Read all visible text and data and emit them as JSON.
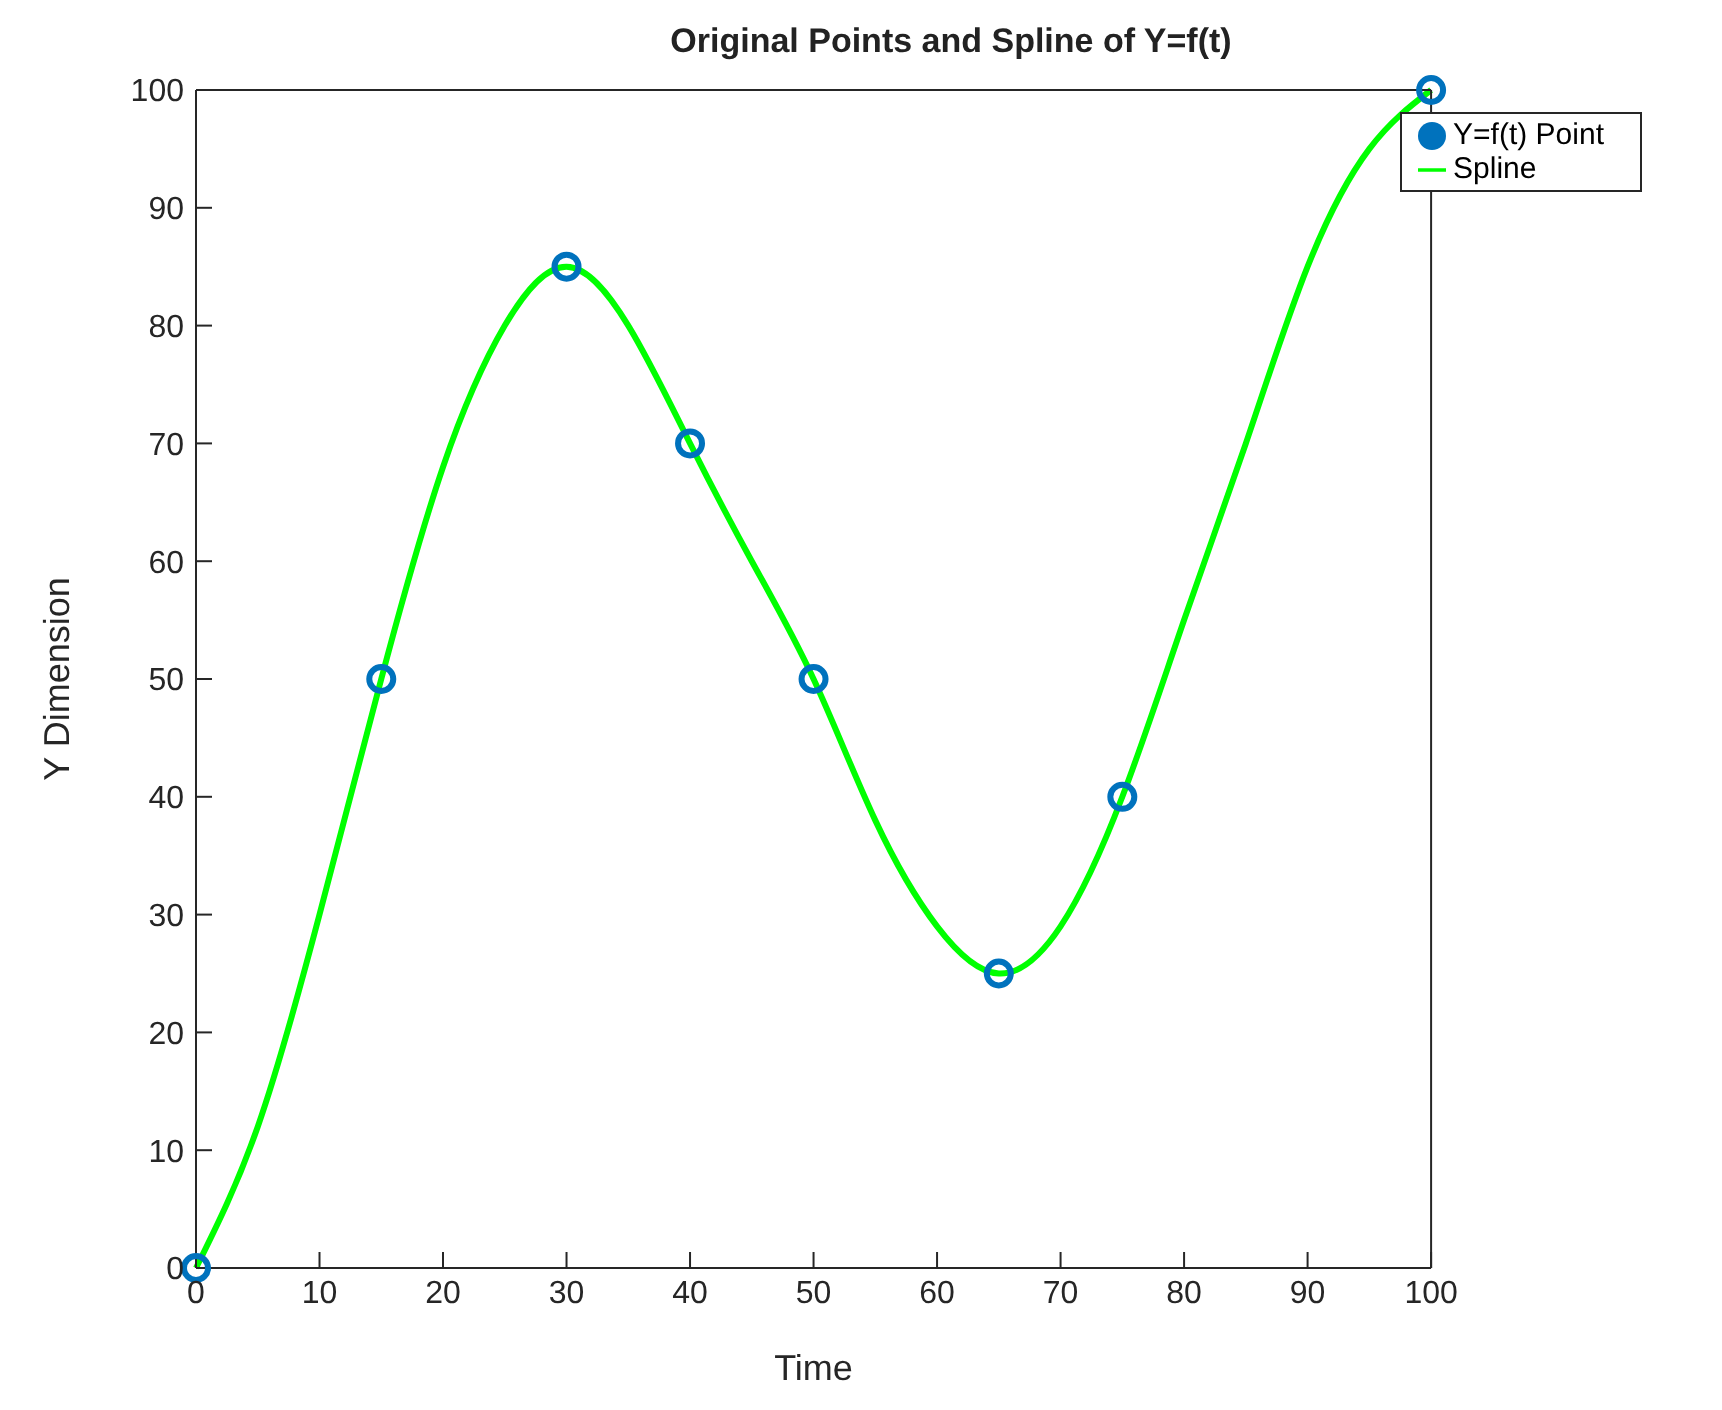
{
  "chart_data": {
    "type": "line",
    "title": "Original Points and Spline of Y=f(t)",
    "xlabel": "Time",
    "ylabel": "Y Dimension",
    "xlim": [
      0,
      100
    ],
    "ylim": [
      0,
      100
    ],
    "xticks": [
      0,
      10,
      20,
      30,
      40,
      50,
      60,
      70,
      80,
      90,
      100
    ],
    "yticks": [
      0,
      10,
      20,
      30,
      40,
      50,
      60,
      70,
      80,
      90,
      100
    ],
    "legend": "top right",
    "series": [
      {
        "name": "Y=f(t) Point",
        "type": "scatter",
        "color": "#0072bd",
        "marker": "circle",
        "x": [
          0,
          15,
          30,
          40,
          50,
          65,
          75,
          100
        ],
        "values": [
          0,
          50,
          85,
          70,
          50,
          25,
          40,
          100
        ]
      },
      {
        "name": "Spline",
        "color": "#00ff00",
        "marker": "none",
        "line_style": "solid",
        "x": [
          0,
          5,
          10,
          15,
          20,
          25,
          30,
          35,
          40,
          45,
          50,
          55,
          60,
          65,
          70,
          75,
          80,
          85,
          90,
          95,
          100
        ],
        "values": [
          0,
          12,
          30,
          50,
          68,
          80,
          85,
          80,
          70,
          60,
          50,
          38,
          29,
          25,
          29,
          40,
          55,
          70,
          85,
          95,
          100
        ]
      }
    ]
  }
}
